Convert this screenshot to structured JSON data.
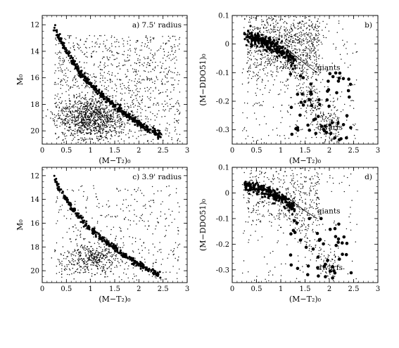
{
  "chart_data": [
    {
      "id": "a",
      "type": "scatter",
      "annotation": "a) 7.5' radius",
      "xlabel": "(M−T₂)₀",
      "ylabel": "M₀",
      "xlim": [
        0,
        3
      ],
      "ylim": [
        21,
        11.3
      ],
      "xticks": [
        0,
        0.5,
        1,
        1.5,
        2,
        2.5,
        3
      ],
      "yticks": [
        12,
        14,
        16,
        18,
        20
      ],
      "field_count": 1100,
      "sequence": {
        "name": "main sequence",
        "points": [
          [
            0.25,
            12.1
          ],
          [
            0.3,
            12.6
          ],
          [
            0.4,
            13.3
          ],
          [
            0.5,
            14.0
          ],
          [
            0.6,
            14.6
          ],
          [
            0.7,
            15.2
          ],
          [
            0.8,
            15.7
          ],
          [
            0.9,
            16.1
          ],
          [
            1.0,
            16.5
          ],
          [
            1.2,
            17.2
          ],
          [
            1.4,
            17.8
          ],
          [
            1.6,
            18.4
          ],
          [
            1.8,
            18.95
          ],
          [
            2.0,
            19.45
          ],
          [
            2.2,
            19.9
          ],
          [
            2.45,
            20.35
          ]
        ],
        "count": 400
      },
      "clump": {
        "center": [
          1.05,
          19.0
        ],
        "spread": [
          0.35,
          1.1
        ],
        "count": 900
      }
    },
    {
      "id": "b",
      "type": "scatter",
      "annotation": "b)",
      "xlabel": "(M−T₂)₀",
      "ylabel": "(M−DDO51)₀",
      "xlim": [
        0,
        3
      ],
      "ylim": [
        -0.35,
        0.1
      ],
      "xticks": [
        0,
        0.5,
        1,
        1.5,
        2,
        2.5,
        3
      ],
      "yticks": [
        0.1,
        0,
        -0.1,
        -0.2,
        -0.3
      ],
      "labels": [
        {
          "text": "giants",
          "x": 1.75,
          "y": -0.09
        },
        {
          "text": "dwarfs",
          "x": 1.75,
          "y": -0.3
        }
      ],
      "giant_line": [
        [
          1.15,
          -0.02
        ],
        [
          1.5,
          -0.07
        ],
        [
          1.75,
          -0.1
        ]
      ],
      "small_count": 1500,
      "big_count": 60,
      "dense_band": [
        [
          0.25,
          0.03
        ],
        [
          0.6,
          0.01
        ],
        [
          0.9,
          -0.01
        ],
        [
          1.1,
          -0.03
        ],
        [
          1.3,
          -0.07
        ],
        [
          1.5,
          -0.14
        ],
        [
          1.7,
          -0.22
        ],
        [
          1.9,
          -0.28
        ]
      ]
    },
    {
      "id": "c",
      "type": "scatter",
      "annotation": "c) 3.9' radius",
      "xlabel": "(M−T₂)₀",
      "ylabel": "M₀",
      "xlim": [
        0,
        3
      ],
      "ylim": [
        21,
        11.3
      ],
      "xticks": [
        0,
        0.5,
        1,
        1.5,
        2,
        2.5,
        3
      ],
      "yticks": [
        12,
        14,
        16,
        18,
        20
      ],
      "field_count": 400,
      "sequence": {
        "name": "main sequence",
        "points": [
          [
            0.25,
            12.1
          ],
          [
            0.3,
            12.6
          ],
          [
            0.4,
            13.3
          ],
          [
            0.5,
            14.0
          ],
          [
            0.6,
            14.6
          ],
          [
            0.7,
            15.2
          ],
          [
            0.8,
            15.7
          ],
          [
            0.9,
            16.1
          ],
          [
            1.0,
            16.5
          ],
          [
            1.2,
            17.2
          ],
          [
            1.4,
            17.8
          ],
          [
            1.6,
            18.4
          ],
          [
            1.8,
            18.95
          ],
          [
            2.0,
            19.45
          ],
          [
            2.2,
            19.9
          ],
          [
            2.45,
            20.35
          ]
        ],
        "count": 300
      },
      "clump": {
        "center": [
          1.05,
          18.9
        ],
        "spread": [
          0.3,
          1.0
        ],
        "count": 380
      }
    },
    {
      "id": "d",
      "type": "scatter",
      "annotation": "d)",
      "xlabel": "(M−T₂)₀",
      "ylabel": "(M−DDO51)₀",
      "xlim": [
        0,
        3
      ],
      "ylim": [
        -0.35,
        0.1
      ],
      "xticks": [
        0,
        0.5,
        1,
        1.5,
        2,
        2.5,
        3
      ],
      "yticks": [
        0.1,
        0,
        -0.1,
        -0.2,
        -0.3
      ],
      "labels": [
        {
          "text": "giants",
          "x": 1.75,
          "y": -0.08
        },
        {
          "text": "dwarfs",
          "x": 1.75,
          "y": -0.3
        }
      ],
      "giant_line": [
        [
          1.15,
          -0.02
        ],
        [
          1.5,
          -0.07
        ],
        [
          1.75,
          -0.1
        ]
      ],
      "small_count": 700,
      "big_count": 45,
      "dense_band": [
        [
          0.25,
          0.03
        ],
        [
          0.6,
          0.01
        ],
        [
          0.9,
          -0.01
        ],
        [
          1.1,
          -0.03
        ],
        [
          1.3,
          -0.07
        ],
        [
          1.5,
          -0.14
        ],
        [
          1.7,
          -0.22
        ],
        [
          1.9,
          -0.28
        ]
      ]
    }
  ]
}
